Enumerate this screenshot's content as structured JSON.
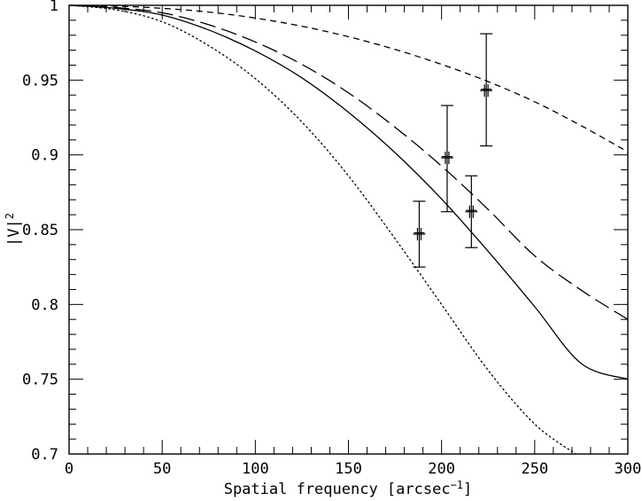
{
  "chart_data": {
    "type": "line",
    "xlabel": "Spatial frequency [arcsec",
    "xlabel_superscript": "−1",
    "xlabel_suffix": "]",
    "ylabel": "|V|",
    "ylabel_superscript": "2",
    "xlim": [
      0,
      300
    ],
    "ylim": [
      0.7,
      1.0
    ],
    "x_ticks": [
      0,
      50,
      100,
      150,
      200,
      250,
      300
    ],
    "y_ticks": [
      0.7,
      0.75,
      0.8,
      0.85,
      0.9,
      0.95,
      1
    ],
    "x_tick_labels": [
      "0",
      "50",
      "100",
      "150",
      "200",
      "250",
      "300"
    ],
    "y_tick_labels": [
      "0.7",
      "0.75",
      "0.8",
      "0.85",
      "0.9",
      "0.95",
      "1"
    ],
    "grid": false,
    "series": [
      {
        "style": "solid",
        "x": [
          0,
          25,
          50,
          75,
          100,
          125,
          150,
          175,
          200,
          225,
          250,
          275,
          300
        ],
        "y": [
          1.0,
          0.998,
          0.9935,
          0.9835,
          0.9695,
          0.9515,
          0.9285,
          0.9015,
          0.8705,
          0.8355,
          0.7985,
          0.7605,
          0.75
        ]
      },
      {
        "style": "long-dash",
        "x": [
          0,
          25,
          50,
          75,
          100,
          125,
          150,
          175,
          200,
          225,
          250,
          275,
          300
        ],
        "y": [
          1.0,
          0.9985,
          0.995,
          0.987,
          0.9755,
          0.9605,
          0.9415,
          0.9185,
          0.8925,
          0.8635,
          0.8325,
          0.8095,
          0.79
        ]
      },
      {
        "style": "short-dash",
        "x": [
          0,
          25,
          50,
          75,
          100,
          125,
          150,
          175,
          200,
          225,
          250,
          275,
          300
        ],
        "y": [
          1.0,
          0.9995,
          0.998,
          0.9955,
          0.9915,
          0.986,
          0.979,
          0.9705,
          0.9605,
          0.949,
          0.9355,
          0.9195,
          0.902
        ]
      },
      {
        "style": "dotted",
        "x": [
          0,
          25,
          50,
          75,
          100,
          125,
          150,
          175,
          200,
          225,
          250,
          272
        ],
        "y": [
          1.0,
          0.997,
          0.989,
          0.973,
          0.951,
          0.922,
          0.886,
          0.844,
          0.8,
          0.756,
          0.72,
          0.7
        ]
      }
    ],
    "points": [
      {
        "x": 188,
        "y": 0.847,
        "yerr_low": 0.825,
        "yerr_high": 0.869
      },
      {
        "x": 203,
        "y": 0.898,
        "yerr_low": 0.862,
        "yerr_high": 0.933
      },
      {
        "x": 216,
        "y": 0.862,
        "yerr_low": 0.838,
        "yerr_high": 0.886
      },
      {
        "x": 224,
        "y": 0.943,
        "yerr_low": 0.906,
        "yerr_high": 0.981
      }
    ]
  }
}
